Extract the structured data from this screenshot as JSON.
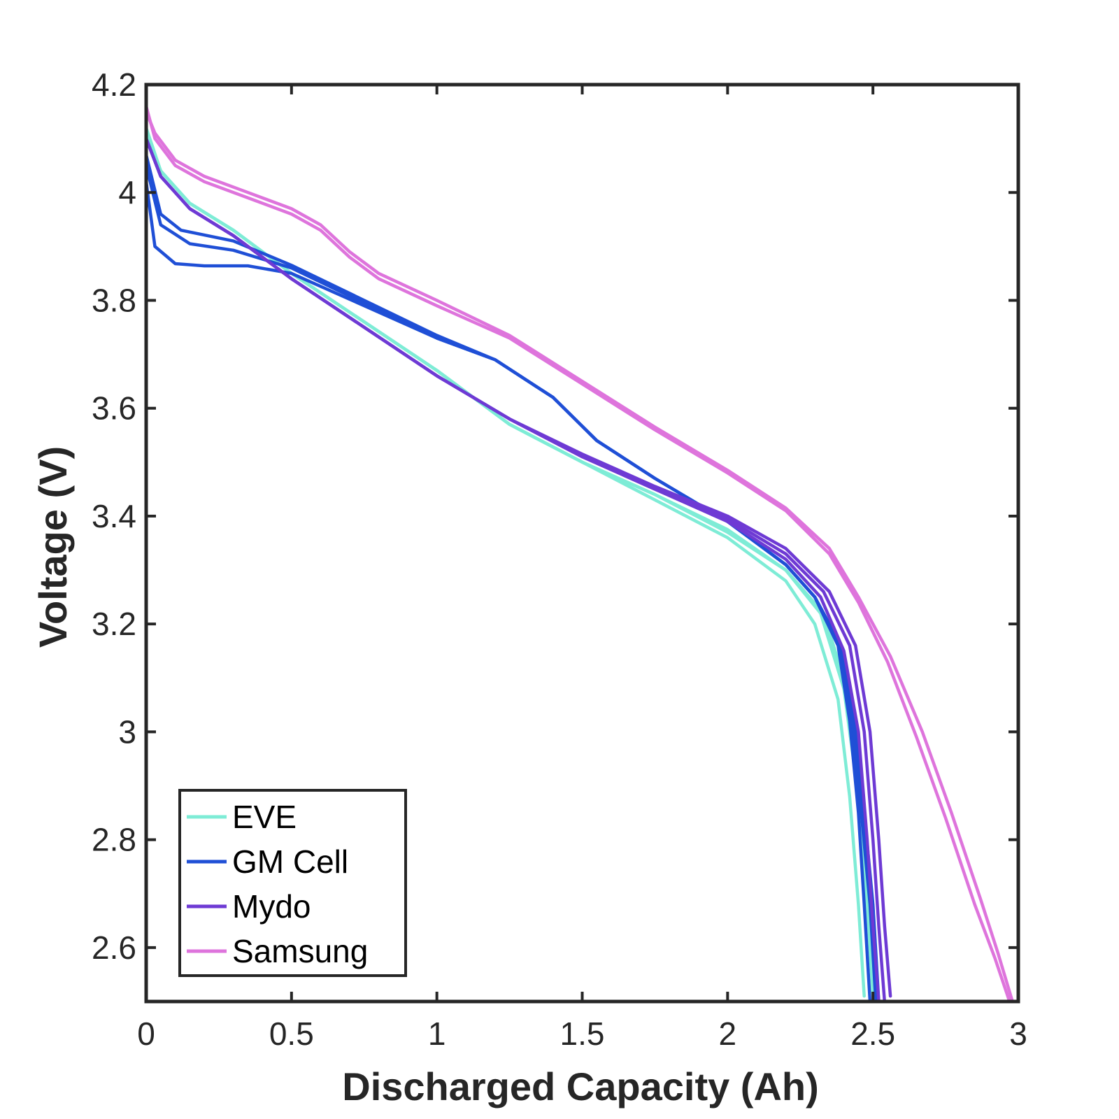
{
  "chart_data": {
    "type": "line",
    "title": "",
    "xlabel": "Discharged Capacity (Ah)",
    "ylabel": "Voltage (V)",
    "xlim": [
      0,
      3
    ],
    "ylim": [
      2.5,
      4.2
    ],
    "xticks": [
      0,
      0.5,
      1,
      1.5,
      2,
      2.5,
      3
    ],
    "xtick_labels": [
      "0",
      "0.5",
      "1",
      "1.5",
      "2",
      "2.5",
      "3"
    ],
    "yticks": [
      2.6,
      2.8,
      3.0,
      3.2,
      3.4,
      3.6,
      3.8,
      4.0,
      4.2
    ],
    "ytick_labels": [
      "2.6",
      "2.8",
      "3",
      "3.2",
      "3.4",
      "3.6",
      "3.8",
      "4",
      "4.2"
    ],
    "grid": false,
    "legend_position": "bottom-left",
    "legend": [
      {
        "name": "EVE",
        "color": "#7eecd6"
      },
      {
        "name": "GM Cell",
        "color": "#1f4fd6"
      },
      {
        "name": "Mydo",
        "color": "#6e3ad4"
      },
      {
        "name": "Samsung",
        "color": "#de74dc"
      }
    ],
    "series": [
      {
        "name": "EVE",
        "color": "#7eecd6",
        "points": [
          [
            0,
            4.12
          ],
          [
            0.05,
            4.04
          ],
          [
            0.15,
            3.98
          ],
          [
            0.3,
            3.93
          ],
          [
            0.5,
            3.85
          ],
          [
            0.75,
            3.76
          ],
          [
            1.0,
            3.67
          ],
          [
            1.25,
            3.57
          ],
          [
            1.5,
            3.5
          ],
          [
            1.75,
            3.43
          ],
          [
            2.0,
            3.36
          ],
          [
            2.2,
            3.28
          ],
          [
            2.3,
            3.2
          ],
          [
            2.38,
            3.06
          ],
          [
            2.42,
            2.88
          ],
          [
            2.45,
            2.68
          ],
          [
            2.47,
            2.51
          ]
        ]
      },
      {
        "name": "EVE",
        "color": "#7eecd6",
        "points": [
          [
            0,
            4.11
          ],
          [
            0.05,
            4.04
          ],
          [
            0.15,
            3.98
          ],
          [
            0.3,
            3.93
          ],
          [
            0.5,
            3.85
          ],
          [
            0.75,
            3.76
          ],
          [
            1.0,
            3.67
          ],
          [
            1.25,
            3.57
          ],
          [
            1.5,
            3.5
          ],
          [
            1.75,
            3.44
          ],
          [
            2.0,
            3.37
          ],
          [
            2.2,
            3.3
          ],
          [
            2.32,
            3.22
          ],
          [
            2.4,
            3.08
          ],
          [
            2.45,
            2.88
          ],
          [
            2.48,
            2.68
          ],
          [
            2.5,
            2.51
          ]
        ]
      },
      {
        "name": "EVE",
        "color": "#7eecd6",
        "points": [
          [
            0,
            4.11
          ],
          [
            0.05,
            4.04
          ],
          [
            0.15,
            3.98
          ],
          [
            0.3,
            3.93
          ],
          [
            0.5,
            3.85
          ],
          [
            0.75,
            3.76
          ],
          [
            1.0,
            3.67
          ],
          [
            1.25,
            3.57
          ],
          [
            1.5,
            3.5
          ],
          [
            1.75,
            3.44
          ],
          [
            2.0,
            3.375
          ],
          [
            2.2,
            3.3
          ],
          [
            2.33,
            3.22
          ],
          [
            2.41,
            3.08
          ],
          [
            2.46,
            2.88
          ],
          [
            2.49,
            2.68
          ],
          [
            2.51,
            2.51
          ]
        ]
      },
      {
        "name": "GM Cell",
        "color": "#1f4fd6",
        "points": [
          [
            0,
            4.02
          ],
          [
            0.03,
            3.9
          ],
          [
            0.1,
            3.868
          ],
          [
            0.2,
            3.864
          ],
          [
            0.35,
            3.864
          ],
          [
            0.5,
            3.85
          ],
          [
            0.75,
            3.79
          ],
          [
            1.0,
            3.73
          ],
          [
            1.2,
            3.69
          ],
          [
            1.4,
            3.62
          ],
          [
            1.55,
            3.54
          ],
          [
            1.75,
            3.47
          ],
          [
            2.0,
            3.39
          ],
          [
            2.2,
            3.31
          ],
          [
            2.3,
            3.25
          ],
          [
            2.38,
            3.16
          ],
          [
            2.42,
            3.02
          ],
          [
            2.45,
            2.85
          ],
          [
            2.47,
            2.68
          ],
          [
            2.49,
            2.5
          ]
        ]
      },
      {
        "name": "GM Cell",
        "color": "#1f4fd6",
        "points": [
          [
            0,
            4.05
          ],
          [
            0.05,
            3.94
          ],
          [
            0.15,
            3.905
          ],
          [
            0.3,
            3.893
          ],
          [
            0.5,
            3.86
          ],
          [
            0.75,
            3.795
          ],
          [
            1.0,
            3.73
          ],
          [
            1.2,
            3.69
          ],
          [
            1.4,
            3.62
          ],
          [
            1.55,
            3.54
          ],
          [
            1.75,
            3.47
          ],
          [
            2.0,
            3.39
          ],
          [
            2.2,
            3.31
          ],
          [
            2.3,
            3.25
          ],
          [
            2.39,
            3.16
          ],
          [
            2.43,
            3.02
          ],
          [
            2.46,
            2.85
          ],
          [
            2.49,
            2.68
          ],
          [
            2.51,
            2.5
          ]
        ]
      },
      {
        "name": "GM Cell",
        "color": "#1f4fd6",
        "points": [
          [
            0,
            4.07
          ],
          [
            0.05,
            3.96
          ],
          [
            0.12,
            3.93
          ],
          [
            0.3,
            3.91
          ],
          [
            0.5,
            3.865
          ],
          [
            0.75,
            3.8
          ],
          [
            1.0,
            3.735
          ],
          [
            1.2,
            3.69
          ],
          [
            1.4,
            3.62
          ],
          [
            1.55,
            3.54
          ],
          [
            1.75,
            3.47
          ],
          [
            2.0,
            3.39
          ],
          [
            2.2,
            3.31
          ],
          [
            2.3,
            3.25
          ],
          [
            2.39,
            3.16
          ],
          [
            2.44,
            3.02
          ],
          [
            2.47,
            2.85
          ],
          [
            2.5,
            2.68
          ],
          [
            2.52,
            2.5
          ]
        ]
      },
      {
        "name": "Mydo",
        "color": "#6e3ad4",
        "points": [
          [
            0,
            4.1
          ],
          [
            0.05,
            4.03
          ],
          [
            0.15,
            3.97
          ],
          [
            0.3,
            3.92
          ],
          [
            0.5,
            3.84
          ],
          [
            0.75,
            3.75
          ],
          [
            1.0,
            3.66
          ],
          [
            1.25,
            3.58
          ],
          [
            1.5,
            3.51
          ],
          [
            1.75,
            3.45
          ],
          [
            2.0,
            3.39
          ],
          [
            2.2,
            3.32
          ],
          [
            2.32,
            3.25
          ],
          [
            2.4,
            3.15
          ],
          [
            2.45,
            3.0
          ],
          [
            2.48,
            2.8
          ],
          [
            2.5,
            2.64
          ],
          [
            2.52,
            2.5
          ]
        ]
      },
      {
        "name": "Mydo",
        "color": "#6e3ad4",
        "points": [
          [
            0,
            4.1
          ],
          [
            0.05,
            4.03
          ],
          [
            0.15,
            3.97
          ],
          [
            0.3,
            3.92
          ],
          [
            0.5,
            3.84
          ],
          [
            0.75,
            3.75
          ],
          [
            1.0,
            3.66
          ],
          [
            1.25,
            3.58
          ],
          [
            1.5,
            3.51
          ],
          [
            1.75,
            3.45
          ],
          [
            2.0,
            3.395
          ],
          [
            2.2,
            3.33
          ],
          [
            2.33,
            3.26
          ],
          [
            2.42,
            3.16
          ],
          [
            2.47,
            3.0
          ],
          [
            2.5,
            2.8
          ],
          [
            2.52,
            2.64
          ],
          [
            2.54,
            2.5
          ]
        ]
      },
      {
        "name": "Mydo",
        "color": "#6e3ad4",
        "points": [
          [
            0,
            4.1
          ],
          [
            0.05,
            4.03
          ],
          [
            0.15,
            3.97
          ],
          [
            0.3,
            3.92
          ],
          [
            0.5,
            3.84
          ],
          [
            0.75,
            3.75
          ],
          [
            1.0,
            3.66
          ],
          [
            1.25,
            3.58
          ],
          [
            1.5,
            3.515
          ],
          [
            1.75,
            3.455
          ],
          [
            2.0,
            3.4
          ],
          [
            2.2,
            3.34
          ],
          [
            2.35,
            3.26
          ],
          [
            2.44,
            3.16
          ],
          [
            2.49,
            3.0
          ],
          [
            2.52,
            2.8
          ],
          [
            2.54,
            2.64
          ],
          [
            2.56,
            2.51
          ]
        ]
      },
      {
        "name": "Samsung",
        "color": "#de74dc",
        "points": [
          [
            0,
            4.16
          ],
          [
            0.03,
            4.1
          ],
          [
            0.1,
            4.05
          ],
          [
            0.2,
            4.02
          ],
          [
            0.35,
            3.99
          ],
          [
            0.5,
            3.96
          ],
          [
            0.6,
            3.93
          ],
          [
            0.7,
            3.88
          ],
          [
            0.8,
            3.84
          ],
          [
            1.0,
            3.79
          ],
          [
            1.25,
            3.73
          ],
          [
            1.5,
            3.645
          ],
          [
            1.75,
            3.56
          ],
          [
            2.0,
            3.48
          ],
          [
            2.2,
            3.41
          ],
          [
            2.35,
            3.33
          ],
          [
            2.45,
            3.24
          ],
          [
            2.55,
            3.13
          ],
          [
            2.65,
            2.99
          ],
          [
            2.75,
            2.84
          ],
          [
            2.85,
            2.68
          ],
          [
            2.92,
            2.58
          ],
          [
            2.97,
            2.5
          ]
        ]
      },
      {
        "name": "Samsung",
        "color": "#de74dc",
        "points": [
          [
            0,
            4.15
          ],
          [
            0.03,
            4.11
          ],
          [
            0.1,
            4.06
          ],
          [
            0.2,
            4.03
          ],
          [
            0.35,
            4.0
          ],
          [
            0.5,
            3.97
          ],
          [
            0.6,
            3.94
          ],
          [
            0.7,
            3.89
          ],
          [
            0.8,
            3.85
          ],
          [
            1.0,
            3.8
          ],
          [
            1.25,
            3.735
          ],
          [
            1.5,
            3.65
          ],
          [
            1.75,
            3.565
          ],
          [
            2.0,
            3.485
          ],
          [
            2.2,
            3.415
          ],
          [
            2.35,
            3.34
          ],
          [
            2.45,
            3.25
          ],
          [
            2.56,
            3.14
          ],
          [
            2.67,
            3.0
          ],
          [
            2.77,
            2.85
          ],
          [
            2.87,
            2.69
          ],
          [
            2.93,
            2.59
          ],
          [
            2.98,
            2.5
          ]
        ]
      }
    ]
  }
}
